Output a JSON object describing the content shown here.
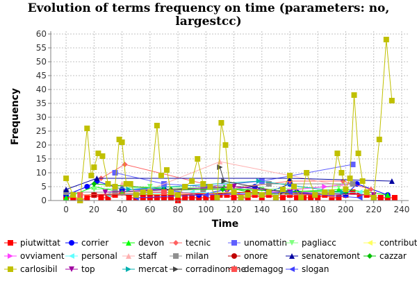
{
  "chart_data": {
    "type": "line",
    "title_lines": [
      "Evolution of terms frequency on time (parameters: no,",
      "largestcc)"
    ],
    "xlabel": "Time",
    "ylabel": "Frequency",
    "xlim": [
      -11,
      245
    ],
    "ylim": [
      0,
      61
    ],
    "xticks": [
      0,
      20,
      40,
      60,
      80,
      100,
      120,
      140,
      160,
      180,
      200,
      220,
      240
    ],
    "yticks": [
      0,
      5,
      10,
      15,
      20,
      25,
      30,
      35,
      40,
      45,
      50,
      55,
      60
    ],
    "grid": true,
    "legend_position": "bottom",
    "series": [
      {
        "name": "piutwittat",
        "color": "#ff0000",
        "marker": "square",
        "x": [
          0,
          5,
          10,
          15,
          20,
          25,
          30,
          35,
          40,
          45,
          50,
          55,
          60,
          65,
          70,
          75,
          80,
          85,
          90,
          95,
          100,
          105,
          110,
          115,
          120,
          125,
          130,
          135,
          140,
          145,
          150,
          155,
          160,
          165,
          170,
          175,
          180,
          185,
          190,
          195,
          200,
          205,
          210,
          215,
          220,
          225,
          230,
          235
        ],
        "y": [
          1,
          1,
          0,
          1,
          2,
          1,
          1,
          2,
          3,
          1,
          1,
          1,
          1,
          1,
          1,
          1,
          0,
          1,
          1,
          1,
          1,
          1,
          2,
          2,
          1,
          1,
          1,
          2,
          1,
          2,
          1,
          1,
          2,
          1,
          1,
          1,
          1,
          2,
          1,
          1,
          2,
          3,
          2,
          2,
          1,
          1,
          1,
          1
        ]
      },
      {
        "name": "corrier",
        "color": "#0000ff",
        "marker": "circle",
        "x": [
          0,
          15,
          22,
          40,
          70,
          95,
          115,
          135,
          145,
          160,
          165,
          200,
          208,
          230
        ],
        "y": [
          2,
          5,
          7,
          4,
          4,
          2,
          4,
          5,
          3,
          6,
          3,
          2,
          6,
          2
        ]
      },
      {
        "name": "devon",
        "color": "#00ff00",
        "marker": "triangle-up",
        "x": [
          0,
          20,
          40,
          70,
          113,
          140,
          158,
          195,
          200,
          230
        ],
        "y": [
          1,
          5,
          3,
          4,
          5,
          2,
          3,
          4,
          4,
          2
        ]
      },
      {
        "name": "tecnic",
        "color": "#ff6060",
        "marker": "diamond",
        "x": [
          25,
          42,
          115,
          160,
          198,
          218
        ],
        "y": [
          8,
          13,
          4,
          7,
          7,
          4
        ]
      },
      {
        "name": "unomattin",
        "color": "#6060ff",
        "marker": "square",
        "x": [
          35,
          70,
          100,
          140,
          205
        ],
        "y": [
          10,
          6,
          5,
          7,
          13
        ]
      },
      {
        "name": "pagliacc",
        "color": "#80ff80",
        "marker": "triangle-down",
        "x": [
          20,
          60,
          140,
          195
        ],
        "y": [
          4,
          5,
          4,
          5
        ]
      },
      {
        "name": "contribut",
        "color": "#ffff60",
        "marker": "triangle-left",
        "x": [
          10,
          50,
          120,
          220
        ],
        "y": [
          2,
          2,
          3,
          2
        ]
      },
      {
        "name": "ovviament",
        "color": "#ff40ff",
        "marker": "triangle-right",
        "x": [
          60,
          125,
          185,
          205
        ],
        "y": [
          3,
          2,
          5,
          6
        ]
      },
      {
        "name": "personal",
        "color": "#60ffff",
        "marker": "triangle-left",
        "x": [
          30,
          90,
          150,
          210
        ],
        "y": [
          2,
          3,
          2,
          3
        ]
      },
      {
        "name": "staff",
        "color": "#ffb0b0",
        "marker": "triangle-up",
        "x": [
          40,
          60,
          110,
          200
        ],
        "y": [
          6,
          4,
          14,
          5
        ]
      },
      {
        "name": "milan",
        "color": "#909090",
        "marker": "square",
        "x": [
          0,
          35,
          98,
          145,
          205
        ],
        "y": [
          3,
          3,
          4,
          6,
          6
        ]
      },
      {
        "name": "onore",
        "color": "#c00000",
        "marker": "circle",
        "x": [
          20,
          80,
          130,
          190
        ],
        "y": [
          2,
          2,
          3,
          2
        ]
      },
      {
        "name": "senatoremont",
        "color": "#0000a0",
        "marker": "triangle-up",
        "x": [
          0,
          22,
          160,
          233
        ],
        "y": [
          4,
          8,
          8,
          7
        ]
      },
      {
        "name": "cazzar",
        "color": "#00c000",
        "marker": "diamond",
        "x": [
          20,
          75,
          112,
          200
        ],
        "y": [
          6,
          4,
          4,
          3
        ]
      },
      {
        "name": "carlosibil",
        "color": "#c0c000",
        "marker": "square",
        "x": [
          0,
          5,
          10,
          15,
          18,
          20,
          23,
          26,
          30,
          35,
          38,
          40,
          43,
          46,
          50,
          55,
          60,
          65,
          68,
          72,
          75,
          80,
          85,
          90,
          94,
          98,
          103,
          108,
          111,
          114,
          117,
          120,
          125,
          130,
          135,
          140,
          145,
          150,
          155,
          160,
          163,
          168,
          172,
          178,
          185,
          190,
          194,
          197,
          200,
          203,
          206,
          209,
          212,
          215,
          220,
          224,
          229,
          233
        ],
        "y": [
          8,
          2,
          0,
          26,
          9,
          12,
          17,
          16,
          6,
          5,
          22,
          21,
          6,
          6,
          2,
          3,
          3,
          27,
          9,
          11,
          3,
          2,
          5,
          7,
          15,
          6,
          5,
          1,
          28,
          20,
          5,
          3,
          1,
          2,
          3,
          2,
          3,
          1,
          4,
          9,
          5,
          1,
          10,
          2,
          3,
          3,
          17,
          10,
          4,
          8,
          38,
          17,
          7,
          3,
          1,
          22,
          58,
          36
        ]
      },
      {
        "name": "top",
        "color": "#a000a0",
        "marker": "triangle-down",
        "x": [
          28,
          120,
          160,
          220
        ],
        "y": [
          3,
          5,
          3,
          2
        ]
      },
      {
        "name": "mercat",
        "color": "#00b0b0",
        "marker": "triangle-right",
        "x": [
          45,
          138,
          198
        ],
        "y": [
          4,
          7,
          3
        ]
      },
      {
        "name": "corradinomine",
        "color": "#404040",
        "marker": "triangle-right",
        "x": [
          110,
          113,
          155
        ],
        "y": [
          12,
          7,
          3
        ]
      },
      {
        "name": "demagog",
        "color": "#ff5050",
        "marker": "square",
        "x": [
          10,
          70,
          130,
          190
        ],
        "y": [
          2,
          3,
          2,
          2
        ]
      },
      {
        "name": "slogan",
        "color": "#4040ff",
        "marker": "triangle-left",
        "x": [
          50,
          100,
          160,
          210
        ],
        "y": [
          1,
          2,
          3,
          1
        ]
      }
    ]
  }
}
